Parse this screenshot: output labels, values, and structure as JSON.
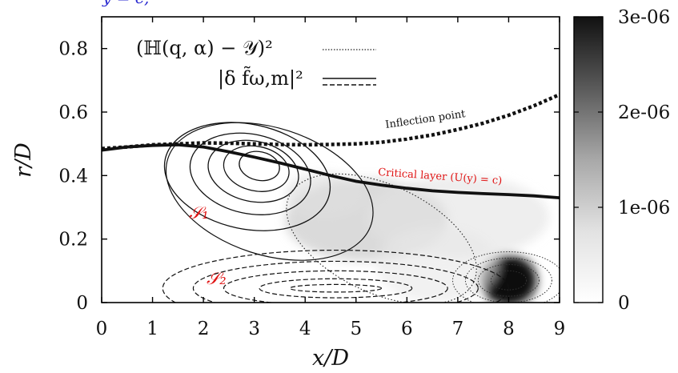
{
  "top_text": "y = c,",
  "chart_data": {
    "type": "heatmap",
    "xlabel": "x/D",
    "ylabel": "r/D",
    "xlim": [
      0,
      9
    ],
    "ylim": [
      0,
      0.9
    ],
    "x_ticks": [
      "0",
      "1",
      "2",
      "3",
      "4",
      "5",
      "6",
      "7",
      "8",
      "9"
    ],
    "x_tick_values": [
      0,
      1,
      2,
      3,
      4,
      5,
      6,
      7,
      8,
      9
    ],
    "y_ticks": [
      "0",
      "0.2",
      "0.4",
      "0.6",
      "0.8"
    ],
    "y_tick_values": [
      0,
      0.2,
      0.4,
      0.6,
      0.8
    ],
    "colorbar": {
      "min": 0,
      "max": 3e-06,
      "ticks": [
        "0",
        "1e-06",
        "2e-06",
        "3e-06"
      ],
      "tick_values": [
        0,
        1e-06,
        2e-06,
        3e-06
      ],
      "colormap": "white-to-black"
    },
    "legend": {
      "position": "top-left",
      "entries": [
        {
          "label": "(ℍ(q, α) − 𝒴)²",
          "style": "dotted"
        },
        {
          "label": "|δ f̃ω,m|²",
          "style": "solid / dashed"
        }
      ]
    },
    "heat_blobs": [
      {
        "x": 8.0,
        "y": 0.07,
        "sx": 0.55,
        "sy": 0.08,
        "value": 3e-06
      },
      {
        "x": 5.2,
        "y": 0.26,
        "sx": 1.6,
        "sy": 0.13,
        "value": 7e-07
      },
      {
        "x": 7.0,
        "y": 0.27,
        "sx": 1.8,
        "sy": 0.13,
        "value": 3.5e-07
      },
      {
        "x": 4.4,
        "y": 0.34,
        "sx": 0.8,
        "sy": 0.07,
        "value": 4e-07
      },
      {
        "x": 6.6,
        "y": 0.12,
        "sx": 1.2,
        "sy": 0.12,
        "value": 3e-07
      }
    ],
    "curves": {
      "critical_layer": [
        [
          0,
          0.48
        ],
        [
          0.5,
          0.49
        ],
        [
          1,
          0.495
        ],
        [
          1.5,
          0.497
        ],
        [
          2,
          0.49
        ],
        [
          2.5,
          0.475
        ],
        [
          3,
          0.458
        ],
        [
          3.5,
          0.44
        ],
        [
          4,
          0.42
        ],
        [
          4.5,
          0.4
        ],
        [
          5,
          0.382
        ],
        [
          5.5,
          0.37
        ],
        [
          6,
          0.36
        ],
        [
          6.5,
          0.352
        ],
        [
          7,
          0.347
        ],
        [
          7.5,
          0.343
        ],
        [
          8,
          0.34
        ],
        [
          8.5,
          0.336
        ],
        [
          9,
          0.33
        ]
      ],
      "inflection_point": [
        [
          0,
          0.485
        ],
        [
          0.5,
          0.49
        ],
        [
          1,
          0.497
        ],
        [
          1.5,
          0.5
        ],
        [
          2,
          0.503
        ],
        [
          2.5,
          0.502
        ],
        [
          3,
          0.5
        ],
        [
          3.5,
          0.498
        ],
        [
          4,
          0.497
        ],
        [
          4.5,
          0.498
        ],
        [
          5,
          0.5
        ],
        [
          5.5,
          0.505
        ],
        [
          6,
          0.515
        ],
        [
          6.5,
          0.528
        ],
        [
          7,
          0.545
        ],
        [
          7.5,
          0.565
        ],
        [
          8,
          0.59
        ],
        [
          8.5,
          0.62
        ],
        [
          9,
          0.655
        ]
      ]
    },
    "contours": {
      "S1_solid": {
        "center": [
          3.1,
          0.43
        ],
        "levels": [
          [
            0.4,
            0.045
          ],
          [
            0.65,
            0.07
          ],
          [
            0.9,
            0.095
          ],
          [
            1.2,
            0.125
          ],
          [
            1.65,
            0.165
          ]
        ]
      },
      "S1_outer": {
        "center": [
          3.3,
          0.35
        ],
        "rx": 2.1,
        "ry": 0.2
      },
      "S2_dashed": {
        "center": [
          4.6,
          0.045
        ],
        "levels": [
          [
            0.9,
            0.012
          ],
          [
            1.5,
            0.03
          ],
          [
            2.2,
            0.055
          ],
          [
            2.8,
            0.085
          ],
          [
            3.4,
            0.12
          ]
        ]
      },
      "dotted_region": {
        "center": [
          5.5,
          0.2
        ],
        "rx": 2.0,
        "ry": 0.17
      },
      "dotted_peak": {
        "center": [
          8.0,
          0.07
        ],
        "levels": [
          [
            0.35,
            0.03
          ],
          [
            0.6,
            0.05
          ],
          [
            0.85,
            0.07
          ],
          [
            1.1,
            0.09
          ]
        ]
      }
    },
    "annotations": {
      "inflection": "Inflection point",
      "critical": "Critical layer (U(y) = c)",
      "s1": "𝒮₁",
      "s2": "𝒮₂"
    }
  }
}
